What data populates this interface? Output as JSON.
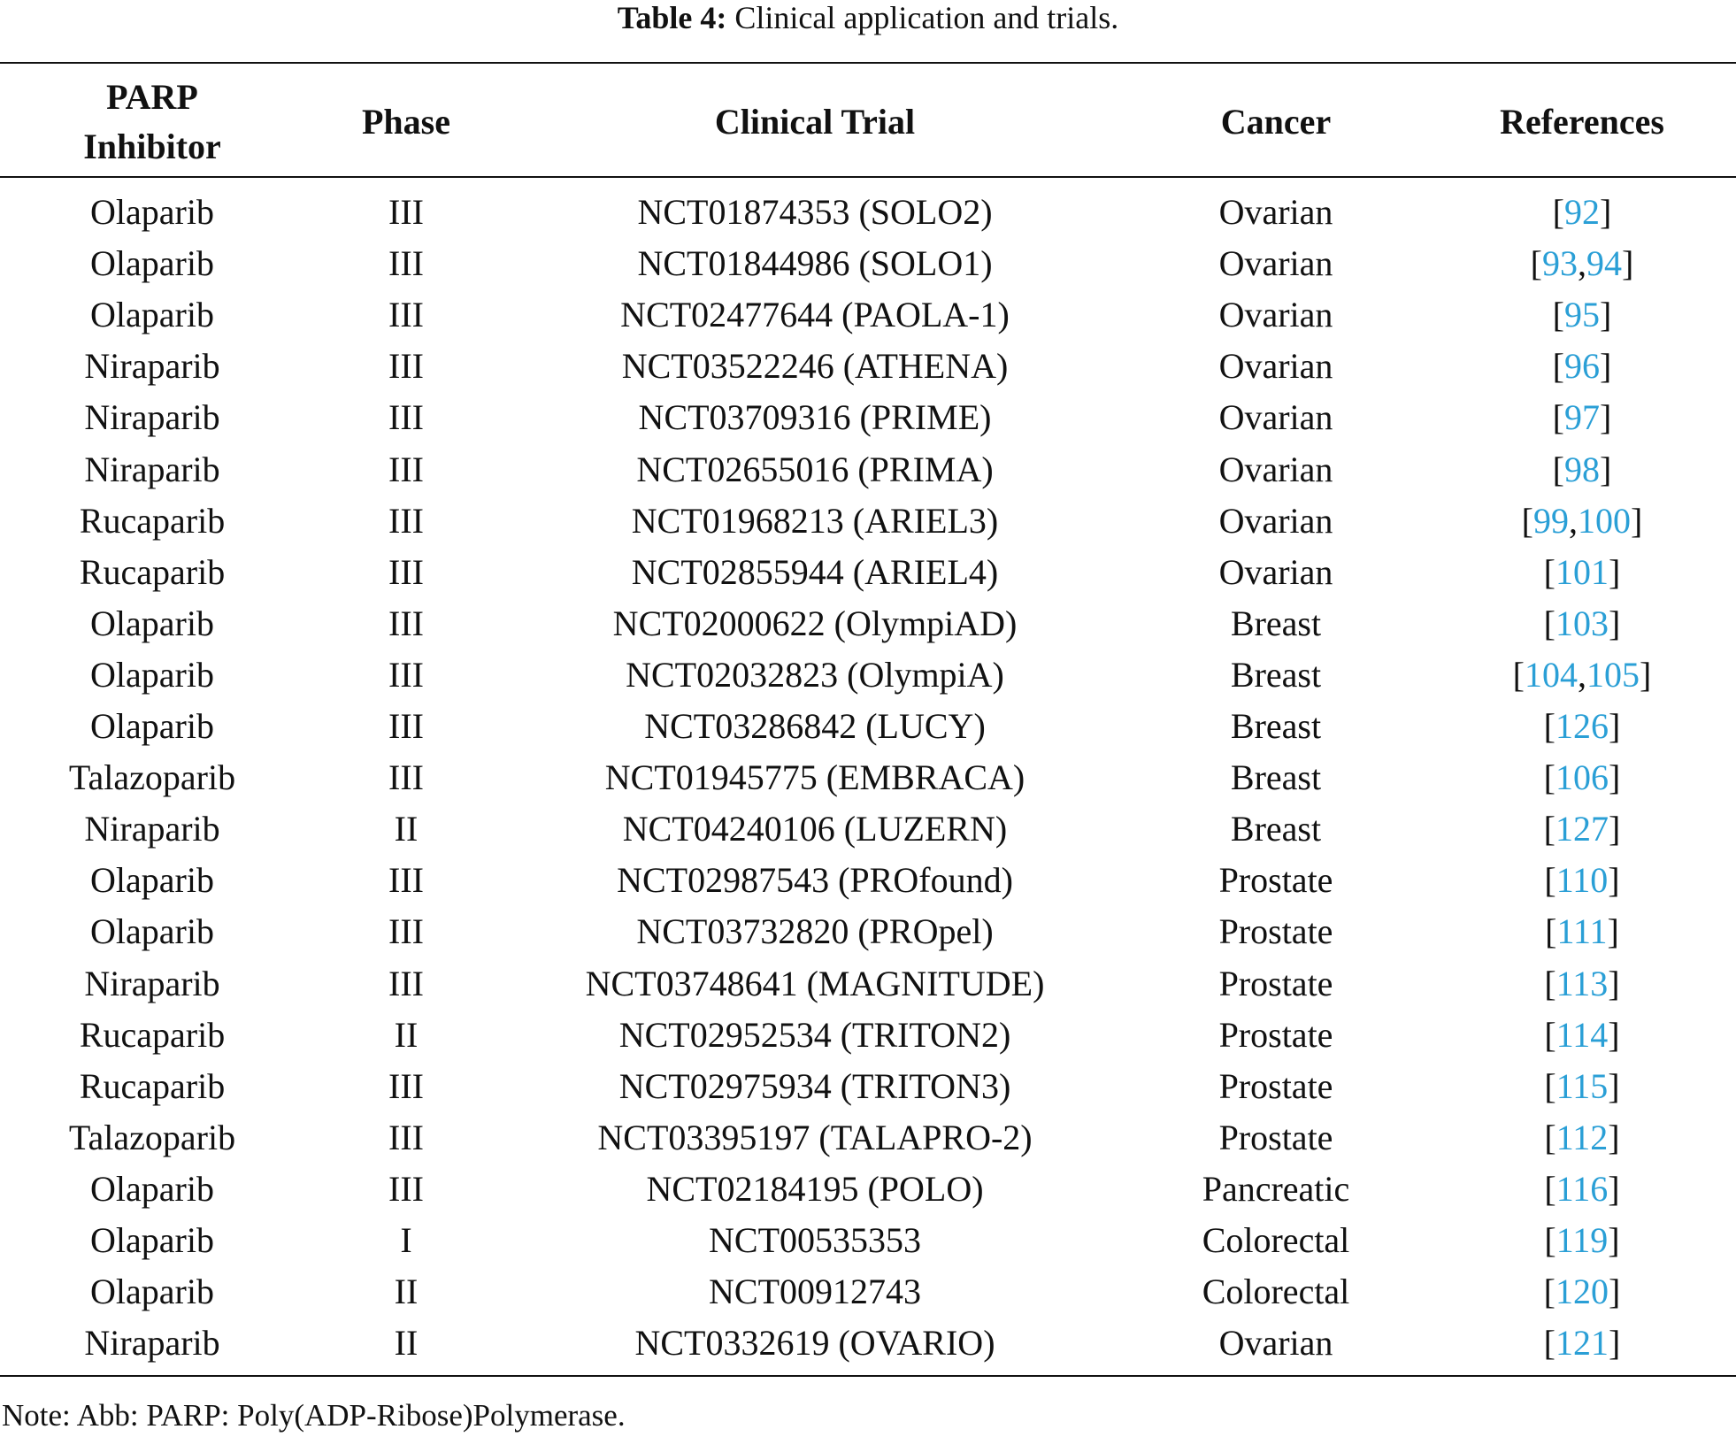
{
  "caption": {
    "label": "Table 4:",
    "text": "Clinical application and trials."
  },
  "table": {
    "headers": [
      "PARP Inhibitor",
      "Phase",
      "Clinical Trial",
      "Cancer",
      "References"
    ],
    "rows": [
      [
        "Olaparib",
        "III",
        "NCT01874353 (SOLO2)",
        "Ovarian",
        [
          "[",
          "92",
          "]"
        ]
      ],
      [
        "Olaparib",
        "III",
        "NCT01844986 (SOLO1)",
        "Ovarian",
        [
          "[",
          "93",
          ",",
          "94",
          "]"
        ]
      ],
      [
        "Olaparib",
        "III",
        "NCT02477644 (PAOLA-1)",
        "Ovarian",
        [
          "[",
          "95",
          "]"
        ]
      ],
      [
        "Niraparib",
        "III",
        "NCT03522246 (ATHENA)",
        "Ovarian",
        [
          "[",
          "96",
          "]"
        ]
      ],
      [
        "Niraparib",
        "III",
        "NCT03709316 (PRIME)",
        "Ovarian",
        [
          "[",
          "97",
          "]"
        ]
      ],
      [
        "Niraparib",
        "III",
        "NCT02655016 (PRIMA)",
        "Ovarian",
        [
          "[",
          "98",
          "]"
        ]
      ],
      [
        "Rucaparib",
        "III",
        "NCT01968213 (ARIEL3)",
        "Ovarian",
        [
          "[",
          "99",
          ",",
          "100",
          "]"
        ]
      ],
      [
        "Rucaparib",
        "III",
        "NCT02855944 (ARIEL4)",
        "Ovarian",
        [
          "[",
          "101",
          "]"
        ]
      ],
      [
        "Olaparib",
        "III",
        "NCT02000622 (OlympiAD)",
        "Breast",
        [
          "[",
          "103",
          "]"
        ]
      ],
      [
        "Olaparib",
        "III",
        "NCT02032823 (OlympiA)",
        "Breast",
        [
          "[",
          "104",
          ",",
          "105",
          "]"
        ]
      ],
      [
        "Olaparib",
        "III",
        "NCT03286842 (LUCY)",
        "Breast",
        [
          "[",
          "126",
          "]"
        ]
      ],
      [
        "Talazoparib",
        "III",
        "NCT01945775 (EMBRACA)",
        "Breast",
        [
          "[",
          "106",
          "]"
        ]
      ],
      [
        "Niraparib",
        "II",
        "NCT04240106 (LUZERN)",
        "Breast",
        [
          "[",
          "127",
          "]"
        ]
      ],
      [
        "Olaparib",
        "III",
        "NCT02987543 (PROfound)",
        "Prostate",
        [
          "[",
          "110",
          "]"
        ]
      ],
      [
        "Olaparib",
        "III",
        "NCT03732820 (PROpel)",
        "Prostate",
        [
          "[",
          "111",
          "]"
        ]
      ],
      [
        "Niraparib",
        "III",
        "NCT03748641 (MAGNITUDE)",
        "Prostate",
        [
          "[",
          "113",
          "]"
        ]
      ],
      [
        "Rucaparib",
        "II",
        "NCT02952534 (TRITON2)",
        "Prostate",
        [
          "[",
          "114",
          "]"
        ]
      ],
      [
        "Rucaparib",
        "III",
        "NCT02975934 (TRITON3)",
        "Prostate",
        [
          "[",
          "115",
          "]"
        ]
      ],
      [
        "Talazoparib",
        "III",
        "NCT03395197 (TALAPRO-2)",
        "Prostate",
        [
          "[",
          "112",
          "]"
        ]
      ],
      [
        "Olaparib",
        "III",
        "NCT02184195 (POLO)",
        "Pancreatic",
        [
          "[",
          "116",
          "]"
        ]
      ],
      [
        "Olaparib",
        "I",
        "NCT00535353",
        "Colorectal",
        [
          "[",
          "119",
          "]"
        ]
      ],
      [
        "Olaparib",
        "II",
        "NCT00912743",
        "Colorectal",
        [
          "[",
          "120",
          "]"
        ]
      ],
      [
        "Niraparib",
        "II",
        "NCT0332619 (OVARIO)",
        "Ovarian",
        [
          "[",
          "121",
          "]"
        ]
      ]
    ]
  },
  "note": "Note: Abb: PARP: Poly(ADP-Ribose)Polymerase."
}
